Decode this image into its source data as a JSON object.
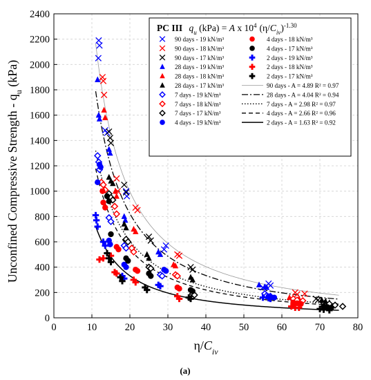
{
  "chart_data": {
    "type": "scatter",
    "title": "",
    "xlabel_main": "η/",
    "xlabel_sub": "iv",
    "xlabel_var": "C",
    "ylabel": "Unconfined Compressive Strength - q",
    "ylabel_sub": "u",
    "ylabel_unit": " (kPa)",
    "xlim": [
      0,
      80
    ],
    "ylim": [
      0,
      2400
    ],
    "xticks": [
      0,
      10,
      20,
      30,
      40,
      50,
      60,
      70,
      80
    ],
    "yticks": [
      0,
      200,
      400,
      600,
      800,
      1000,
      1200,
      1400,
      1600,
      1800,
      2000,
      2200,
      2400
    ],
    "grid": true,
    "caption": "(a)",
    "legend": {
      "placement": "top-right",
      "title_prefix": "PC III",
      "title_formula": "q (kPa) = A x 10  (η/C )",
      "title_exponent": "-1.30",
      "title_power": "4"
    },
    "colors": {
      "blue": "#0000ff",
      "red": "#ff0000",
      "black": "#000000",
      "gray": "#999999"
    },
    "series": [
      {
        "name": "90 days - 19 kN/m³",
        "marker": "x",
        "color": "#0000ff",
        "points": [
          [
            11.8,
            2190
          ],
          [
            12.0,
            2150
          ],
          [
            11.7,
            2050
          ],
          [
            13.5,
            1480
          ],
          [
            14.0,
            1460
          ],
          [
            19.0,
            1000
          ],
          [
            19.2,
            960
          ],
          [
            29.5,
            570
          ],
          [
            29.0,
            540
          ],
          [
            56.5,
            270
          ],
          [
            57.0,
            255
          ],
          [
            55.0,
            240
          ]
        ]
      },
      {
        "name": "90 days - 18 kN/m³",
        "marker": "x",
        "color": "#ff0000",
        "points": [
          [
            12.8,
            1900
          ],
          [
            13.0,
            1870
          ],
          [
            13.2,
            1760
          ],
          [
            16.5,
            1100
          ],
          [
            16.8,
            1000
          ],
          [
            21.5,
            870
          ],
          [
            22.0,
            850
          ],
          [
            32.5,
            500
          ],
          [
            33.0,
            490
          ],
          [
            63.5,
            200
          ],
          [
            64.0,
            185
          ],
          [
            66.0,
            190
          ]
        ]
      },
      {
        "name": "90 days - 17 kN/m³",
        "marker": "x",
        "color": "#000000",
        "points": [
          [
            14.5,
            1470
          ],
          [
            14.8,
            1420
          ],
          [
            15.0,
            1380
          ],
          [
            18.5,
            1050
          ],
          [
            19.0,
            990
          ],
          [
            25.0,
            640
          ],
          [
            25.5,
            610
          ],
          [
            36.0,
            400
          ],
          [
            36.5,
            380
          ],
          [
            69.0,
            150
          ],
          [
            69.5,
            140
          ],
          [
            71.0,
            130
          ]
        ]
      },
      {
        "name": "28 days - 19 kN/m³",
        "marker": "tri",
        "color": "#0000ff",
        "points": [
          [
            11.5,
            1880
          ],
          [
            11.8,
            1600
          ],
          [
            12.0,
            1570
          ],
          [
            14.5,
            1330
          ],
          [
            14.8,
            1300
          ],
          [
            18.5,
            800
          ],
          [
            18.8,
            770
          ],
          [
            27.5,
            520
          ],
          [
            28.0,
            500
          ],
          [
            54.0,
            260
          ],
          [
            55.5,
            245
          ],
          [
            56.0,
            240
          ]
        ]
      },
      {
        "name": "28 days - 18 kN/m³",
        "marker": "tri",
        "color": "#ff0000",
        "points": [
          [
            13.2,
            1640
          ],
          [
            13.5,
            1580
          ],
          [
            16.2,
            1000
          ],
          [
            16.5,
            960
          ],
          [
            21.0,
            700
          ],
          [
            21.5,
            680
          ],
          [
            31.5,
            420
          ],
          [
            32.0,
            410
          ],
          [
            62.0,
            160
          ],
          [
            63.0,
            150
          ],
          [
            64.5,
            150
          ]
        ]
      },
      {
        "name": "28 days - 17 kN/m³",
        "marker": "tri",
        "color": "#000000",
        "points": [
          [
            14.5,
            1110
          ],
          [
            15.0,
            1080
          ],
          [
            15.5,
            1060
          ],
          [
            18.5,
            740
          ],
          [
            19.0,
            710
          ],
          [
            24.5,
            500
          ],
          [
            25.0,
            470
          ],
          [
            36.0,
            320
          ],
          [
            36.5,
            300
          ],
          [
            70.5,
            140
          ],
          [
            71.5,
            130
          ],
          [
            72.5,
            120
          ]
        ]
      },
      {
        "name": "7 days - 19 kN/m³",
        "marker": "diamond",
        "color": "#0000ff",
        "points": [
          [
            11.5,
            1280
          ],
          [
            11.8,
            1230
          ],
          [
            12.0,
            1170
          ],
          [
            14.5,
            790
          ],
          [
            15.0,
            760
          ],
          [
            18.5,
            570
          ],
          [
            19.0,
            550
          ],
          [
            28.0,
            340
          ],
          [
            28.5,
            330
          ],
          [
            55.5,
            190
          ],
          [
            56.0,
            175
          ],
          [
            57.0,
            170
          ]
        ]
      },
      {
        "name": "7 days - 18 kN/m³",
        "marker": "diamond",
        "color": "#ff0000",
        "points": [
          [
            12.5,
            1070
          ],
          [
            13.0,
            1050
          ],
          [
            13.5,
            1010
          ],
          [
            16.0,
            880
          ],
          [
            16.5,
            820
          ],
          [
            20.5,
            550
          ],
          [
            21.0,
            520
          ],
          [
            32.0,
            340
          ],
          [
            32.5,
            330
          ],
          [
            63.0,
            150
          ],
          [
            64.0,
            140
          ],
          [
            65.5,
            135
          ]
        ]
      },
      {
        "name": "7 days - 17 kN/m³",
        "marker": "diamond",
        "color": "#000000",
        "points": [
          [
            14.5,
            980
          ],
          [
            15.0,
            950
          ],
          [
            15.5,
            930
          ],
          [
            19.0,
            620
          ],
          [
            19.5,
            600
          ],
          [
            25.0,
            400
          ],
          [
            25.5,
            390
          ],
          [
            36.5,
            190
          ],
          [
            37.0,
            180
          ],
          [
            72.5,
            110
          ],
          [
            74.0,
            100
          ],
          [
            76.0,
            90
          ]
        ]
      },
      {
        "name": "4 days - 19 kN/m³",
        "marker": "circle",
        "color": "#0000ff",
        "points": [
          [
            11.5,
            1070
          ],
          [
            12.0,
            1210
          ],
          [
            12.3,
            1190
          ],
          [
            14.5,
            610
          ],
          [
            14.8,
            580
          ],
          [
            18.5,
            420
          ],
          [
            19.0,
            400
          ],
          [
            29.0,
            380
          ],
          [
            29.5,
            370
          ],
          [
            56.5,
            170
          ],
          [
            57.0,
            165
          ],
          [
            58.0,
            160
          ]
        ]
      },
      {
        "name": "4 days - 18 kN/m³",
        "marker": "circle",
        "color": "#ff0000",
        "points": [
          [
            12.8,
            1000
          ],
          [
            13.0,
            910
          ],
          [
            13.5,
            870
          ],
          [
            16.5,
            560
          ],
          [
            17.0,
            540
          ],
          [
            21.5,
            380
          ],
          [
            22.0,
            370
          ],
          [
            32.5,
            240
          ],
          [
            33.0,
            230
          ],
          [
            63.0,
            120
          ],
          [
            64.0,
            115
          ],
          [
            65.0,
            110
          ]
        ]
      },
      {
        "name": "4 days - 17 kN/m³",
        "marker": "circle",
        "color": "#000000",
        "points": [
          [
            14.0,
            960
          ],
          [
            14.5,
            920
          ],
          [
            15.0,
            660
          ],
          [
            19.0,
            470
          ],
          [
            19.5,
            450
          ],
          [
            25.0,
            350
          ],
          [
            25.5,
            330
          ],
          [
            36.0,
            220
          ],
          [
            36.5,
            210
          ],
          [
            71.0,
            90
          ],
          [
            72.0,
            85
          ],
          [
            73.0,
            80
          ]
        ]
      },
      {
        "name": "2 days - 19 kN/m³",
        "marker": "plus",
        "color": "#0000ff",
        "points": [
          [
            11.0,
            810
          ],
          [
            11.2,
            770
          ],
          [
            11.5,
            720
          ],
          [
            13.0,
            600
          ],
          [
            13.5,
            570
          ],
          [
            18.0,
            330
          ],
          [
            18.5,
            310
          ],
          [
            27.5,
            260
          ],
          [
            28.0,
            250
          ],
          [
            55.0,
            160
          ],
          [
            56.5,
            155
          ],
          [
            57.0,
            150
          ]
        ]
      },
      {
        "name": "2 days - 18 kN/m³",
        "marker": "plus",
        "color": "#ff0000",
        "points": [
          [
            12.0,
            460
          ],
          [
            13.0,
            470
          ],
          [
            15.0,
            490
          ],
          [
            16.0,
            360
          ],
          [
            16.5,
            350
          ],
          [
            21.0,
            300
          ],
          [
            21.5,
            280
          ],
          [
            32.5,
            170
          ],
          [
            33.0,
            150
          ],
          [
            62.5,
            90
          ],
          [
            63.5,
            80
          ],
          [
            64.5,
            80
          ]
        ]
      },
      {
        "name": "2 days - 17 kN/m³",
        "marker": "plus",
        "color": "#000000",
        "points": [
          [
            14.0,
            510
          ],
          [
            14.5,
            470
          ],
          [
            15.0,
            440
          ],
          [
            17.5,
            320
          ],
          [
            18.0,
            290
          ],
          [
            24.0,
            240
          ],
          [
            24.5,
            220
          ],
          [
            35.5,
            160
          ],
          [
            36.0,
            150
          ],
          [
            70.0,
            70
          ],
          [
            71.0,
            65
          ],
          [
            72.5,
            60
          ]
        ]
      }
    ],
    "fits": [
      {
        "name": "90 days - A = 4.89  R² = 0.97",
        "A": 4.89,
        "style": "solid",
        "color": "#999999"
      },
      {
        "name": "28 days - A = 4.04  R² = 0.94",
        "A": 4.04,
        "style": "dashdot",
        "color": "#000000"
      },
      {
        "name": "7 days - A = 2.98  R² = 0.97",
        "A": 2.98,
        "style": "dotted",
        "color": "#000000"
      },
      {
        "name": "4 days - A = 2.66  R² = 0.96",
        "A": 2.66,
        "style": "dashed",
        "color": "#000000"
      },
      {
        "name": "2 days - A = 1.63  R² = 0.92",
        "A": 1.63,
        "style": "solidthick",
        "color": "#000000"
      }
    ],
    "fit_exponent": -1.3
  }
}
